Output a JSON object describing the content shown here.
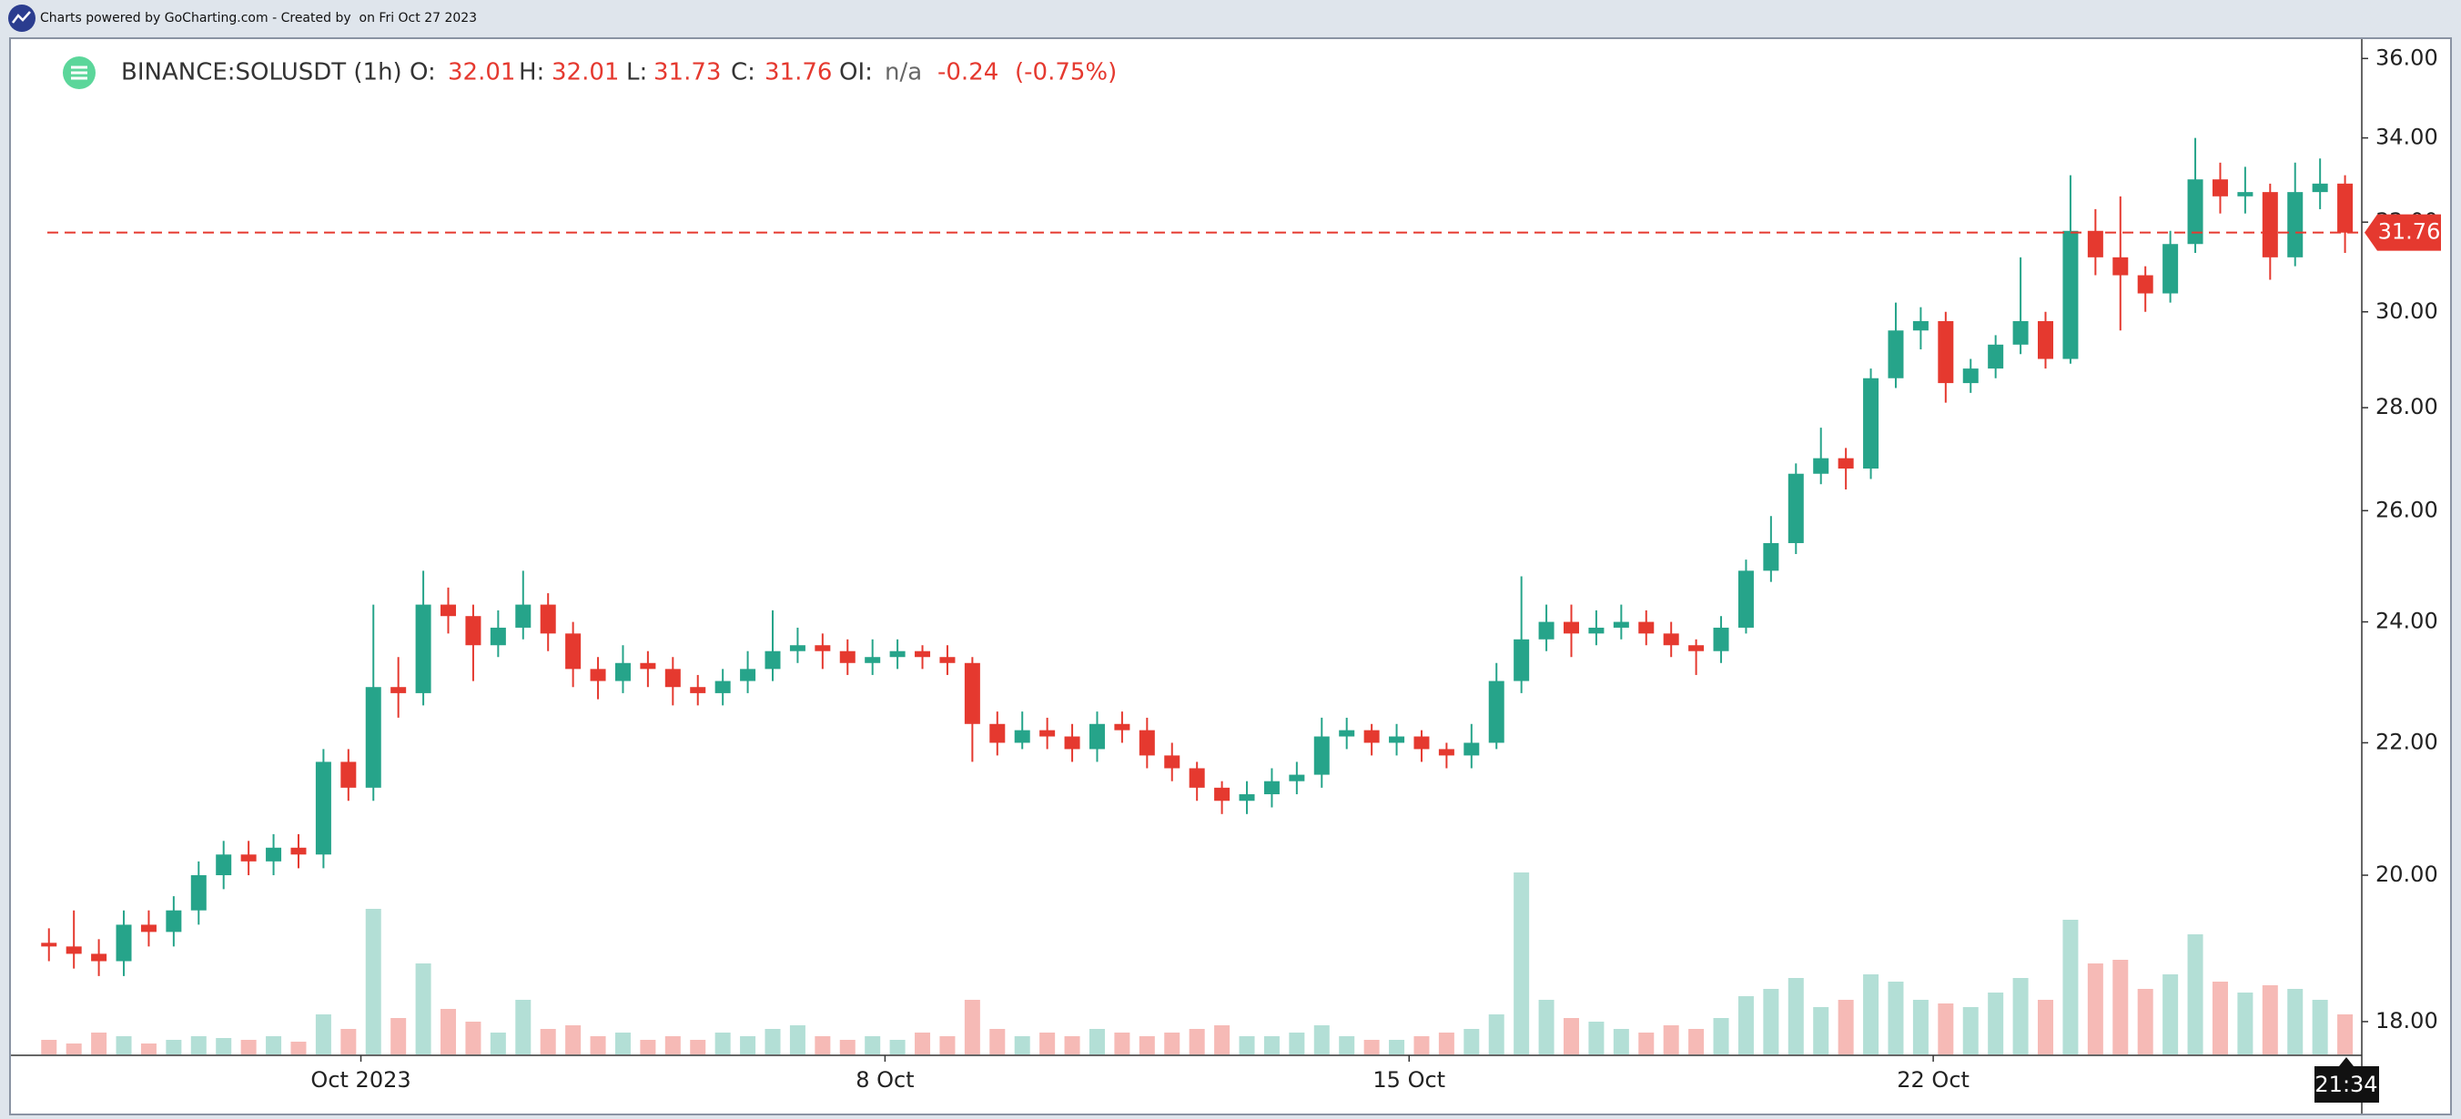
{
  "header": {
    "text": "Charts powered by GoCharting.com - Created by  on Fri Oct 27 2023"
  },
  "chart_data": {
    "type": "candlestick",
    "title": "BINANCE:SOLUSDT (1h)",
    "legend": {
      "open_label": "O:",
      "open": 32.01,
      "high_label": "H:",
      "high": 32.01,
      "low_label": "L:",
      "low": 31.73,
      "close_label": "C:",
      "close": 31.76,
      "oi_label": "OI:",
      "oi": "n/a",
      "change": -0.24,
      "change_percent": {
        "value": -0.75,
        "label": "(-0.75%)"
      }
    },
    "current_time_label": "21:34",
    "up_color": "#26a48a",
    "down_color": "#e5392f",
    "log_scale": true,
    "grid": false,
    "x": [
      -100,
      -92,
      -84,
      -76,
      -68,
      -60,
      -52,
      -44,
      -36,
      -28,
      -20,
      -12,
      -4,
      4,
      12,
      20,
      28,
      36,
      44,
      52,
      60,
      68,
      76,
      84,
      92,
      100,
      108,
      116,
      124,
      132,
      140,
      148,
      156,
      164,
      172,
      180,
      188,
      196,
      204,
      212,
      220,
      228,
      236,
      244,
      252,
      260,
      268,
      276,
      284,
      292,
      300,
      308,
      316,
      324,
      332,
      340,
      348,
      356,
      364,
      372,
      380,
      388,
      396,
      404,
      412,
      420,
      428,
      436,
      444,
      452,
      460,
      468,
      476,
      484,
      492,
      500,
      508,
      516,
      524,
      532,
      540,
      548,
      556,
      564,
      572,
      580,
      588,
      596,
      604,
      612,
      620,
      628,
      636
    ],
    "open": [
      19.05,
      19.0,
      18.9,
      18.8,
      19.3,
      19.2,
      19.5,
      20.0,
      20.3,
      20.2,
      20.4,
      20.3,
      21.7,
      21.3,
      22.9,
      22.8,
      24.3,
      24.1,
      23.6,
      23.9,
      24.3,
      23.8,
      23.2,
      23.0,
      23.3,
      23.2,
      22.9,
      22.8,
      23.0,
      23.2,
      23.5,
      23.6,
      23.5,
      23.3,
      23.4,
      23.5,
      23.4,
      23.3,
      22.3,
      22.0,
      22.2,
      22.1,
      21.9,
      22.3,
      22.2,
      21.8,
      21.6,
      21.3,
      21.1,
      21.2,
      21.4,
      21.5,
      22.1,
      22.2,
      22.0,
      22.1,
      21.9,
      21.8,
      22.0,
      23.0,
      23.7,
      24.0,
      23.8,
      23.9,
      24.0,
      23.8,
      23.6,
      23.5,
      23.9,
      24.9,
      25.4,
      26.7,
      27.0,
      26.8,
      28.6,
      29.6,
      29.8,
      28.5,
      28.8,
      29.3,
      29.8,
      29.0,
      31.8,
      31.2,
      30.8,
      30.4,
      31.5,
      33.0,
      32.6,
      32.7,
      31.2,
      32.7,
      32.9
    ],
    "high": [
      19.25,
      19.5,
      19.1,
      19.5,
      19.5,
      19.7,
      20.2,
      20.5,
      20.5,
      20.6,
      20.6,
      21.9,
      21.9,
      24.3,
      23.4,
      24.9,
      24.6,
      24.3,
      24.2,
      24.9,
      24.5,
      24.0,
      23.4,
      23.6,
      23.5,
      23.4,
      23.1,
      23.2,
      23.5,
      24.2,
      23.9,
      23.8,
      23.7,
      23.7,
      23.7,
      23.6,
      23.6,
      23.4,
      22.5,
      22.5,
      22.4,
      22.3,
      22.5,
      22.5,
      22.4,
      22.0,
      21.7,
      21.4,
      21.4,
      21.6,
      21.7,
      22.4,
      22.4,
      22.3,
      22.3,
      22.2,
      22.0,
      22.3,
      23.3,
      24.8,
      24.3,
      24.3,
      24.2,
      24.3,
      24.2,
      24.0,
      23.7,
      24.1,
      25.1,
      25.9,
      26.9,
      27.6,
      27.2,
      28.8,
      30.2,
      30.1,
      30.0,
      29.0,
      29.5,
      31.2,
      30.0,
      33.1,
      32.3,
      32.6,
      31.0,
      31.8,
      34.0,
      33.4,
      33.3,
      32.9,
      33.4,
      33.5,
      33.1
    ],
    "low": [
      18.8,
      18.7,
      18.6,
      18.6,
      19.0,
      19.0,
      19.3,
      19.8,
      20.0,
      20.0,
      20.1,
      20.1,
      21.1,
      21.1,
      22.4,
      22.6,
      23.8,
      23.0,
      23.4,
      23.7,
      23.5,
      22.9,
      22.7,
      22.8,
      22.9,
      22.6,
      22.6,
      22.6,
      22.8,
      23.0,
      23.3,
      23.2,
      23.1,
      23.1,
      23.2,
      23.2,
      23.1,
      21.7,
      21.8,
      21.9,
      21.9,
      21.7,
      21.7,
      22.0,
      21.6,
      21.4,
      21.1,
      20.9,
      20.9,
      21.0,
      21.2,
      21.3,
      21.9,
      21.8,
      21.8,
      21.7,
      21.6,
      21.6,
      21.9,
      22.8,
      23.5,
      23.4,
      23.6,
      23.7,
      23.6,
      23.4,
      23.1,
      23.3,
      23.8,
      24.7,
      25.2,
      26.5,
      26.4,
      26.6,
      28.4,
      29.2,
      28.1,
      28.3,
      28.6,
      29.1,
      28.8,
      28.9,
      30.8,
      29.6,
      30.0,
      30.2,
      31.3,
      32.2,
      32.2,
      30.7,
      31.0,
      32.3,
      31.3
    ],
    "close": [
      19.0,
      18.9,
      18.8,
      19.3,
      19.2,
      19.5,
      20.0,
      20.3,
      20.2,
      20.4,
      20.3,
      21.7,
      21.3,
      22.9,
      22.8,
      24.3,
      24.1,
      23.6,
      23.9,
      24.3,
      23.8,
      23.2,
      23.0,
      23.3,
      23.2,
      22.9,
      22.8,
      23.0,
      23.2,
      23.5,
      23.6,
      23.5,
      23.3,
      23.4,
      23.5,
      23.4,
      23.3,
      22.3,
      22.0,
      22.2,
      22.1,
      21.9,
      22.3,
      22.2,
      21.8,
      21.6,
      21.3,
      21.1,
      21.2,
      21.4,
      21.5,
      22.1,
      22.2,
      22.0,
      22.1,
      21.9,
      21.8,
      22.0,
      23.0,
      23.7,
      24.0,
      23.8,
      23.9,
      24.0,
      23.8,
      23.6,
      23.5,
      23.9,
      24.9,
      25.4,
      26.7,
      27.0,
      26.8,
      28.6,
      29.6,
      29.8,
      28.5,
      28.8,
      29.3,
      29.8,
      29.0,
      31.8,
      31.2,
      30.8,
      30.4,
      31.5,
      33.0,
      32.6,
      32.7,
      31.2,
      32.7,
      32.9,
      31.76
    ],
    "volume": [
      8,
      6,
      12,
      10,
      6,
      8,
      10,
      9,
      8,
      10,
      7,
      22,
      14,
      80,
      20,
      50,
      25,
      18,
      12,
      30,
      14,
      16,
      10,
      12,
      8,
      10,
      8,
      12,
      10,
      14,
      16,
      10,
      8,
      10,
      8,
      12,
      10,
      30,
      14,
      10,
      12,
      10,
      14,
      12,
      10,
      12,
      14,
      16,
      10,
      10,
      12,
      16,
      10,
      8,
      8,
      10,
      12,
      14,
      22,
      100,
      30,
      20,
      18,
      14,
      12,
      16,
      14,
      20,
      32,
      36,
      42,
      26,
      30,
      44,
      40,
      30,
      28,
      26,
      34,
      42,
      30,
      74,
      50,
      52,
      36,
      44,
      66,
      40,
      34,
      38,
      36,
      30,
      22
    ],
    "xlim": [
      -111.6,
      640.5
    ],
    "xticks": [
      {
        "value": 0,
        "label": "Oct 2023"
      },
      {
        "value": 168,
        "label": "8 Oct"
      },
      {
        "value": 336,
        "label": "15 Oct"
      },
      {
        "value": 504,
        "label": "22 Oct"
      }
    ],
    "ylim": [
      17.58,
      36.41
    ],
    "yticks": [
      {
        "value": 18,
        "label": "18.00"
      },
      {
        "value": 20,
        "label": "20.00"
      },
      {
        "value": 22,
        "label": "22.00"
      },
      {
        "value": 24,
        "label": "24.00"
      },
      {
        "value": 26,
        "label": "26.00"
      },
      {
        "value": 28,
        "label": "28.00"
      },
      {
        "value": 30,
        "label": "30.00"
      },
      {
        "value": 32,
        "label": "32.00"
      },
      {
        "value": 34,
        "label": "34.00"
      },
      {
        "value": 36,
        "label": "36.00"
      }
    ]
  }
}
